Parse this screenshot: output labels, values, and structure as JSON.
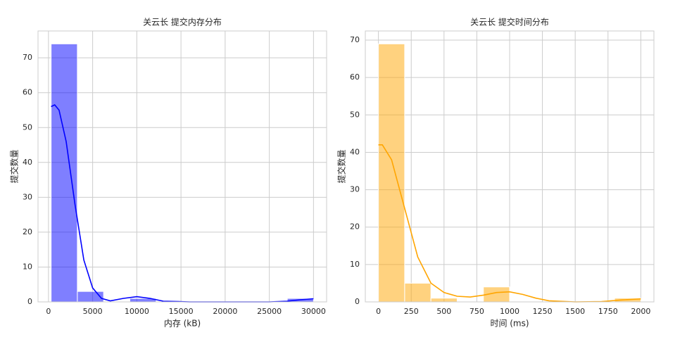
{
  "chart_data": [
    {
      "type": "histogram",
      "title": "关云长 提交内存分布",
      "x_label": "内存 (kB)",
      "y_label": "提交数量",
      "bins": [
        300,
        3270,
        6240,
        9210,
        12180,
        15150,
        18120,
        21090,
        24060,
        27030,
        30000
      ],
      "values": [
        74,
        3,
        0,
        1,
        0,
        0,
        0,
        0,
        0,
        1
      ],
      "kde_x": [
        300,
        700,
        1200,
        2000,
        3000,
        4000,
        5000,
        6000,
        7000,
        8500,
        10000,
        11500,
        13000,
        16000,
        20000,
        25000,
        27000,
        28500,
        30000
      ],
      "kde_values": [
        56,
        56.5,
        55,
        46,
        28,
        12,
        4,
        1,
        0.3,
        1,
        1.5,
        1,
        0.2,
        0,
        0,
        0,
        0.2,
        0.6,
        0.9
      ],
      "color": "#0000ff",
      "xlim": [
        -1185,
        31485
      ],
      "ylim": [
        0,
        77.7
      ],
      "xticks": [
        0,
        5000,
        10000,
        15000,
        20000,
        25000,
        30000
      ],
      "yticks": [
        0,
        10,
        20,
        30,
        40,
        50,
        60,
        70
      ],
      "grid": true
    },
    {
      "type": "histogram",
      "title": "关云长 提交时间分布",
      "x_label": "时间 (ms)",
      "y_label": "提交数量",
      "bins": [
        0,
        200,
        400,
        600,
        800,
        1000,
        1200,
        1400,
        1600,
        1800,
        2000
      ],
      "values": [
        69,
        5,
        1,
        0,
        4,
        0,
        0,
        0,
        0,
        1
      ],
      "kde_x": [
        0,
        30,
        100,
        200,
        300,
        400,
        500,
        600,
        700,
        800,
        900,
        1000,
        1100,
        1200,
        1300,
        1500,
        1700,
        1850,
        2000
      ],
      "kde_values": [
        42,
        42,
        38,
        25,
        12,
        5,
        2.5,
        1.5,
        1.3,
        1.8,
        2.5,
        2.7,
        2,
        1,
        0.3,
        0,
        0.1,
        0.5,
        0.8
      ],
      "color": "#ffa500",
      "xlim": [
        -100,
        2100
      ],
      "ylim": [
        0,
        72.45
      ],
      "xticks": [
        0,
        250,
        500,
        750,
        1000,
        1250,
        1500,
        1750,
        2000
      ],
      "yticks": [
        0,
        10,
        20,
        30,
        40,
        50,
        60,
        70
      ],
      "grid": true
    }
  ]
}
